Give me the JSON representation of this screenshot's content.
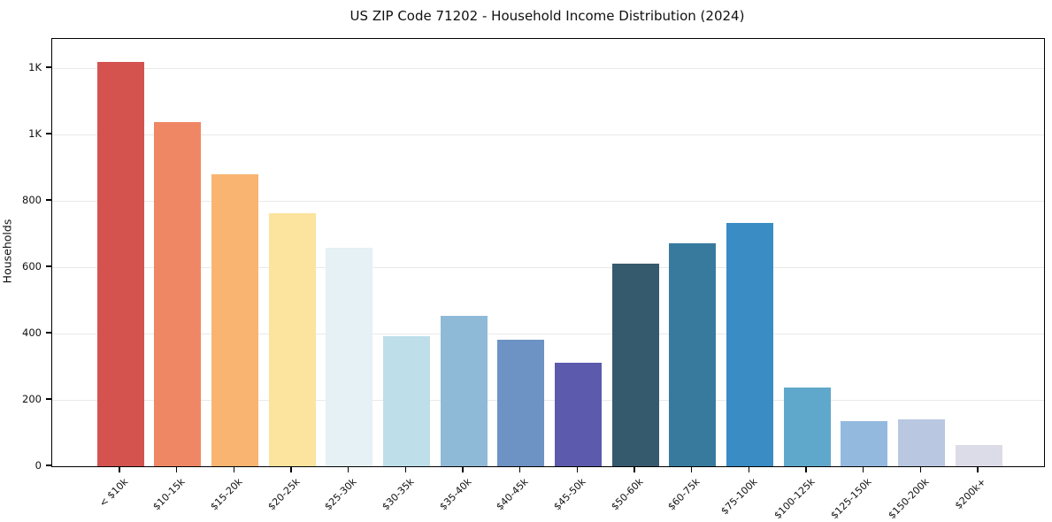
{
  "chart_data": {
    "type": "bar",
    "title": "US ZIP Code 71202 - Household Income Distribution (2024)",
    "xlabel": "",
    "ylabel": "Households",
    "categories": [
      "< $10k",
      "$10-15k",
      "$15-20k",
      "$20-25k",
      "$25-30k",
      "$30-35k",
      "$35-40k",
      "$40-45k",
      "$45-50k",
      "$50-60k",
      "$60-75k",
      "$75-100k",
      "$100-125k",
      "$125-150k",
      "$150-200k",
      "$200k+"
    ],
    "values": [
      1218,
      1037,
      880,
      762,
      658,
      393,
      452,
      382,
      312,
      611,
      672,
      733,
      238,
      137,
      142,
      65
    ],
    "bar_colors": [
      "#d4534f",
      "#f08764",
      "#fab471",
      "#fce49e",
      "#e5f1f4",
      "#bedfe9",
      "#8fbad7",
      "#6d92c4",
      "#5c5aac",
      "#355a6e",
      "#377a9e",
      "#398dc4",
      "#60a8cb",
      "#94b9df",
      "#b9c8e0",
      "#dcdce8"
    ],
    "yticks": [
      {
        "value": 0,
        "label": "0"
      },
      {
        "value": 200,
        "label": "200"
      },
      {
        "value": 400,
        "label": "400"
      },
      {
        "value": 600,
        "label": "600"
      },
      {
        "value": 800,
        "label": "800"
      },
      {
        "value": 1000,
        "label": "1K"
      },
      {
        "value": 1200,
        "label": "1K"
      }
    ],
    "ylim": [
      0,
      1288
    ],
    "grid": "horizontal",
    "legend": "none",
    "background": "#ffffff",
    "gridline_color": "#e9e9e9"
  }
}
